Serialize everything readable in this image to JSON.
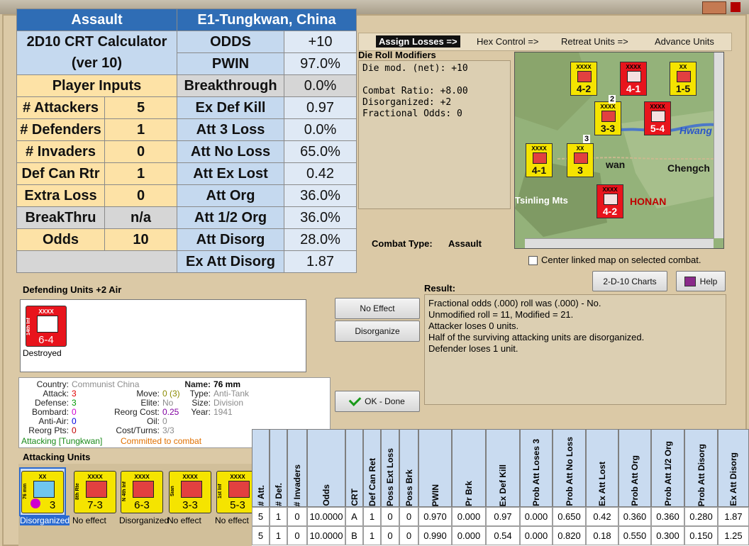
{
  "calculator": {
    "header": [
      "Assault",
      "E1-Tungkwan, China"
    ],
    "title": "2D10 CRT Calculator",
    "version": "(ver 10)",
    "inputs_title": "Player Inputs",
    "inputs": [
      [
        "# Attackers",
        "5"
      ],
      [
        "# Defenders",
        "1"
      ],
      [
        "# Invaders",
        "0"
      ],
      [
        "Def Can Rtr",
        "1"
      ],
      [
        "Extra Loss",
        "0"
      ],
      [
        "BreakThru",
        "n/a"
      ],
      [
        "Odds",
        "10"
      ]
    ],
    "outputs": [
      [
        "ODDS",
        "+10"
      ],
      [
        "PWIN",
        "97.0%"
      ],
      [
        "Breakthrough",
        "0.0%"
      ],
      [
        "Ex Def Kill",
        "0.97"
      ],
      [
        "Att 3 Loss",
        "0.0%"
      ],
      [
        "Att No Loss",
        "65.0%"
      ],
      [
        "Att Ex Lost",
        "0.42"
      ],
      [
        "Att Org",
        "36.0%"
      ],
      [
        "Att 1/2 Org",
        "36.0%"
      ],
      [
        "Att Disorg",
        "28.0%"
      ],
      [
        "Ex Att Disorg",
        "1.87"
      ]
    ]
  },
  "tabs": [
    "Assign Losses =>",
    "Hex Control =>",
    "Retreat Units =>",
    "Advance Units"
  ],
  "die_roll": {
    "title": "Die Roll Modifiers",
    "lines": [
      "Die mod. (net): +10",
      "Combat Ratio: +8.00",
      "Disorganized: +2",
      "Fractional Odds: 0"
    ]
  },
  "combat_type": {
    "label": "Combat Type:",
    "value": "Assault"
  },
  "map": {
    "labels": [
      "Hwang",
      "wan",
      "Chengch",
      "Tsinling Mts",
      "HONAN"
    ],
    "counters": [
      {
        "top": "XXXX",
        "value": "4-2",
        "color": "#f5e400"
      },
      {
        "top": "XXXX",
        "value": "4-1",
        "color": "#e8141c"
      },
      {
        "top": "XX",
        "value": "1-5",
        "color": "#f5e400"
      },
      {
        "top": "XXXX",
        "value": "3-3",
        "color": "#f5e400"
      },
      {
        "top": "XXXX",
        "value": "5-4",
        "color": "#e8141c"
      },
      {
        "top": "XXXX",
        "value": "4-1",
        "color": "#f5e400"
      },
      {
        "top": "XX",
        "value": "3",
        "color": "#f5e400"
      },
      {
        "top": "XXXX",
        "value": "4-2",
        "color": "#e8141c"
      }
    ],
    "stack_counts": [
      "2",
      "3"
    ]
  },
  "center_checkbox": "Center linked map on selected combat.",
  "defending": {
    "title": "Defending Units +2 Air",
    "units": [
      {
        "top": "XXXX",
        "name": "14th Inf",
        "value": "6-4",
        "status": "Destroyed"
      }
    ]
  },
  "buttons": {
    "no_effect": "No Effect",
    "disorganize": "Disorganize",
    "ok": "OK - Done",
    "charts": "2-D-10 Charts",
    "help": "Help"
  },
  "result": {
    "title": "Result:",
    "lines": [
      "Fractional odds (.000) roll was (.000)  - No.",
      "Unmodified roll = 11, Modified = 21.",
      "Attacker loses 0 units.",
      "Half of the surviving attacking units are disorganized.",
      "Defender loses 1 unit."
    ]
  },
  "unit_info": {
    "col1": [
      {
        "label": "Country:",
        "value": "Communist China",
        "color": "#8c8c8c"
      },
      {
        "label": "Attack:",
        "value": "3",
        "color": "#e00000"
      },
      {
        "label": "Defense:",
        "value": "3",
        "color": "#009a00"
      },
      {
        "label": "Bombard:",
        "value": "0",
        "color": "#d000d0"
      },
      {
        "label": "Anti-Air:",
        "value": "0",
        "color": "#0000e0"
      },
      {
        "label": "Reorg Pts:",
        "value": "0",
        "color": "#c00000"
      }
    ],
    "col2": [
      {
        "label": "Move:",
        "value": "0 (3)",
        "color": "#8a8a00"
      },
      {
        "label": "Elite:",
        "value": "No",
        "color": "#8c8c8c"
      },
      {
        "label": "Reorg Cost:",
        "value": "0.25",
        "color": "#8000a0"
      },
      {
        "label": "Oil:",
        "value": "0",
        "color": "#8c8c8c"
      },
      {
        "label": "Cost/Turns:",
        "value": "3/3",
        "color": "#8c8c8c"
      }
    ],
    "col3": [
      {
        "label": "Name:",
        "value": "76 mm",
        "color": "#000000"
      },
      {
        "label": "Type:",
        "value": "Anti-Tank",
        "color": "#8c8c8c"
      },
      {
        "label": "Size:",
        "value": "Division",
        "color": "#8c8c8c"
      },
      {
        "label": "Year:",
        "value": "1941",
        "color": "#8c8c8c"
      }
    ],
    "status": [
      "Attacking [Tungkwan]",
      "Committed to combat"
    ]
  },
  "attacking": {
    "title": "Attacking Units",
    "units": [
      {
        "top": "XX",
        "name": "76 mm",
        "value": "3",
        "status": "Disorganized"
      },
      {
        "top": "XXXX",
        "name": "8th Rte",
        "value": "7-3",
        "status": "No effect"
      },
      {
        "top": "XXXX",
        "name": "N 4th Inf",
        "value": "6-3",
        "status": "Disorganized"
      },
      {
        "top": "XXXX",
        "name": "Sian",
        "value": "3-3",
        "status": "No effect"
      },
      {
        "top": "XXXX",
        "name": "1st Inf",
        "value": "5-3",
        "status": "No effect"
      }
    ]
  },
  "table": {
    "columns": [
      "# Att.",
      "# Def.",
      "# Invaders",
      "Odds",
      "CRT",
      "Def Can Ret",
      "Poss Ext Loss",
      "Poss Brk",
      "PWIN",
      "Pr Brk",
      "Ex Def Kill",
      "Prob Att Loses 3",
      "Prob Att No Loss",
      "Ex Att Lost",
      "Prob Att Org",
      "Prob Att 1/2 Org",
      "Prob Att Disorg",
      "Ex Att Disorg"
    ],
    "rows": [
      [
        "5",
        "1",
        "0",
        "10.0000",
        "A",
        "1",
        "0",
        "0",
        "0.970",
        "0.000",
        "0.97",
        "0.000",
        "0.650",
        "0.42",
        "0.360",
        "0.360",
        "0.280",
        "1.87"
      ],
      [
        "5",
        "1",
        "0",
        "10.0000",
        "B",
        "1",
        "0",
        "0",
        "0.990",
        "0.000",
        "0.54",
        "0.000",
        "0.820",
        "0.18",
        "0.550",
        "0.300",
        "0.150",
        "1.25"
      ]
    ]
  }
}
